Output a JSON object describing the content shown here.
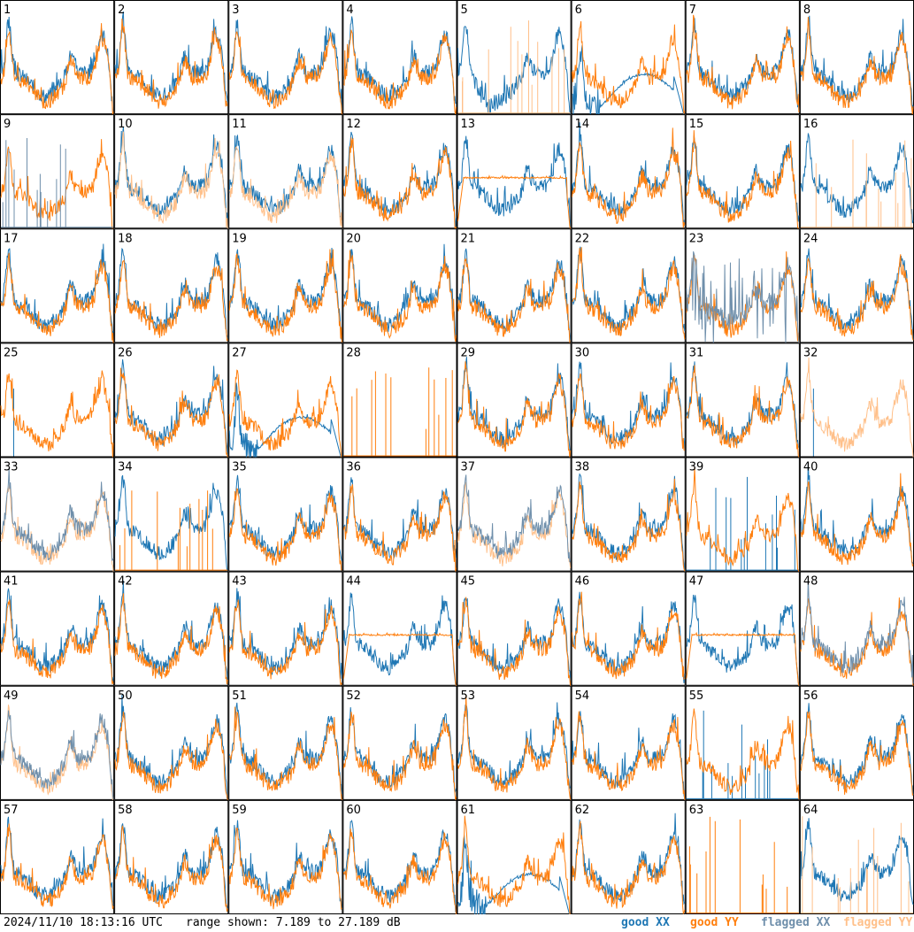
{
  "footer": {
    "timestamp": "2024/11/10 18:13:16 UTC",
    "range_text": "range shown: 7.189 to 27.189 dB",
    "legend": [
      {
        "label": "good XX",
        "color": "#1f77b4"
      },
      {
        "label": "good YY",
        "color": "#ff7f0e"
      },
      {
        "label": "flagged XX",
        "color": "#6f8fab"
      },
      {
        "label": "flagged YY",
        "color": "#ffc08a"
      }
    ]
  },
  "colors": {
    "good_xx": "#1f77b4",
    "good_yy": "#ff7f0e",
    "flagged_xx": "#6f8fab",
    "flagged_yy": "#ffc08a"
  },
  "chart_data": {
    "type": "line",
    "layout": "8x8 small multiples",
    "y_range_db": [
      7.189,
      27.189
    ],
    "series_names": [
      "good XX",
      "good YY",
      "flagged XX",
      "flagged YY"
    ],
    "panels": [
      {
        "id": 1,
        "xx": "normal",
        "yy": "normal"
      },
      {
        "id": 2,
        "xx": "normal",
        "yy": "normal"
      },
      {
        "id": 3,
        "xx": "normal",
        "yy": "normal"
      },
      {
        "id": 4,
        "xx": "normal",
        "yy": "normal"
      },
      {
        "id": 5,
        "xx": "dip",
        "yy": "spikes_flagged"
      },
      {
        "id": 6,
        "xx": "decay",
        "yy": "normal"
      },
      {
        "id": 7,
        "xx": "normal",
        "yy": "normal"
      },
      {
        "id": 8,
        "xx": "normal",
        "yy": "normal"
      },
      {
        "id": 9,
        "xx": "spikes_flagged",
        "yy": "normal"
      },
      {
        "id": 10,
        "xx": "normal",
        "yy": "flagged"
      },
      {
        "id": 11,
        "xx": "normal",
        "yy": "flagged"
      },
      {
        "id": 12,
        "xx": "normal",
        "yy": "normal"
      },
      {
        "id": 13,
        "xx": "normal",
        "yy": "flat"
      },
      {
        "id": 14,
        "xx": "normal",
        "yy": "normal"
      },
      {
        "id": 15,
        "xx": "normal",
        "yy": "normal"
      },
      {
        "id": 16,
        "xx": "normal",
        "yy": "spikes_flagged"
      },
      {
        "id": 17,
        "xx": "normal",
        "yy": "normal"
      },
      {
        "id": 18,
        "xx": "normal",
        "yy": "normal"
      },
      {
        "id": 19,
        "xx": "normal",
        "yy": "normal"
      },
      {
        "id": 20,
        "xx": "normal",
        "yy": "normal"
      },
      {
        "id": 21,
        "xx": "normal",
        "yy": "normal"
      },
      {
        "id": 22,
        "xx": "normal",
        "yy": "normal"
      },
      {
        "id": 23,
        "xx": "noisy_flagged",
        "yy": "normal"
      },
      {
        "id": 24,
        "xx": "normal",
        "yy": "normal"
      },
      {
        "id": 25,
        "xx": "spike_single",
        "yy": "normal"
      },
      {
        "id": 26,
        "xx": "normal",
        "yy": "normal"
      },
      {
        "id": 27,
        "xx": "decay",
        "yy": "normal"
      },
      {
        "id": 28,
        "xx": "none",
        "yy": "spikes"
      },
      {
        "id": 29,
        "xx": "normal",
        "yy": "normal"
      },
      {
        "id": 30,
        "xx": "normal",
        "yy": "normal"
      },
      {
        "id": 31,
        "xx": "normal",
        "yy": "normal"
      },
      {
        "id": 32,
        "xx": "spike_single",
        "yy": "flagged"
      },
      {
        "id": 33,
        "xx": "flagged",
        "yy": "flagged"
      },
      {
        "id": 34,
        "xx": "normal",
        "yy": "spikes"
      },
      {
        "id": 35,
        "xx": "normal",
        "yy": "normal"
      },
      {
        "id": 36,
        "xx": "normal",
        "yy": "normal"
      },
      {
        "id": 37,
        "xx": "flagged",
        "yy": "flagged"
      },
      {
        "id": 38,
        "xx": "normal",
        "yy": "normal"
      },
      {
        "id": 39,
        "xx": "spikes",
        "yy": "normal"
      },
      {
        "id": 40,
        "xx": "normal",
        "yy": "normal"
      },
      {
        "id": 41,
        "xx": "normal",
        "yy": "normal"
      },
      {
        "id": 42,
        "xx": "normal",
        "yy": "normal"
      },
      {
        "id": 43,
        "xx": "normal",
        "yy": "normal"
      },
      {
        "id": 44,
        "xx": "normal",
        "yy": "flat"
      },
      {
        "id": 45,
        "xx": "normal",
        "yy": "normal"
      },
      {
        "id": 46,
        "xx": "normal",
        "yy": "normal"
      },
      {
        "id": 47,
        "xx": "normal",
        "yy": "flat"
      },
      {
        "id": 48,
        "xx": "flagged",
        "yy": "normal"
      },
      {
        "id": 49,
        "xx": "flagged",
        "yy": "flagged"
      },
      {
        "id": 50,
        "xx": "normal",
        "yy": "normal"
      },
      {
        "id": 51,
        "xx": "normal",
        "yy": "normal"
      },
      {
        "id": 52,
        "xx": "normal",
        "yy": "normal"
      },
      {
        "id": 53,
        "xx": "normal",
        "yy": "normal"
      },
      {
        "id": 54,
        "xx": "normal",
        "yy": "normal"
      },
      {
        "id": 55,
        "xx": "spikes",
        "yy": "normal"
      },
      {
        "id": 56,
        "xx": "normal",
        "yy": "normal"
      },
      {
        "id": 57,
        "xx": "normal",
        "yy": "normal"
      },
      {
        "id": 58,
        "xx": "normal",
        "yy": "normal"
      },
      {
        "id": 59,
        "xx": "normal",
        "yy": "normal"
      },
      {
        "id": 60,
        "xx": "normal",
        "yy": "normal"
      },
      {
        "id": 61,
        "xx": "decay",
        "yy": "normal"
      },
      {
        "id": 62,
        "xx": "normal",
        "yy": "normal"
      },
      {
        "id": 63,
        "xx": "none",
        "yy": "spikes"
      },
      {
        "id": 64,
        "xx": "normal",
        "yy": "spikes_flagged"
      }
    ]
  }
}
